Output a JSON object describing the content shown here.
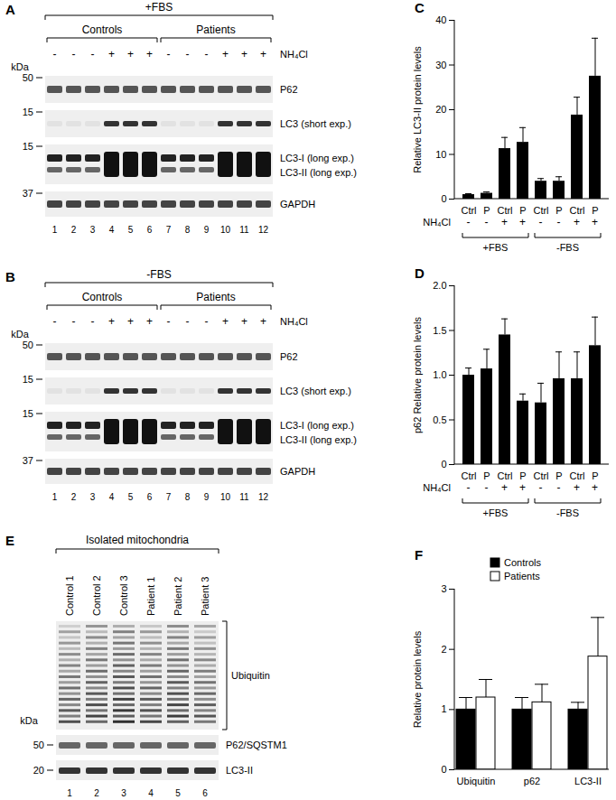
{
  "chart_data": [
    {
      "type": "bar",
      "title": "C",
      "y_label": "Relative LC3-II protein levels",
      "categories": [
        "Ctrl",
        "P",
        "Ctrl",
        "P",
        "Ctrl",
        "P",
        "Ctrl",
        "P"
      ],
      "values": [
        1.0,
        1.3,
        11.3,
        12.7,
        4.0,
        4.0,
        18.8,
        27.5
      ],
      "errors": [
        0.2,
        0.3,
        2.5,
        3.3,
        0.6,
        1.0,
        4.0,
        8.5
      ],
      "color": "#000000",
      "ylim": [
        0,
        40
      ],
      "yticks": [
        0,
        10,
        20,
        30,
        40
      ],
      "treatment": {
        "name": "NH₄Cl",
        "values": [
          "-",
          "-",
          "+",
          "+",
          "-",
          "-",
          "+",
          "+"
        ]
      },
      "groups": [
        {
          "name": "+FBS",
          "size": 4
        },
        {
          "name": "-FBS",
          "size": 4
        }
      ]
    },
    {
      "type": "bar",
      "title": "D",
      "y_label": "p62 Relative protein levels",
      "categories": [
        "Ctrl",
        "P",
        "Ctrl",
        "P",
        "Ctrl",
        "P",
        "Ctrl",
        "P"
      ],
      "values": [
        1.0,
        1.07,
        1.45,
        0.71,
        0.69,
        0.96,
        0.96,
        1.33
      ],
      "errors": [
        0.08,
        0.22,
        0.18,
        0.08,
        0.22,
        0.3,
        0.3,
        0.32
      ],
      "color": "#000000",
      "ylim": [
        0,
        2
      ],
      "yticks": [
        0,
        0.5,
        {
          "value": 1,
          "label": "1.0"
        },
        1.5,
        {
          "value": 2,
          "label": "2.0"
        }
      ],
      "treatment": {
        "name": "NH₄Cl",
        "values": [
          "-",
          "-",
          "+",
          "+",
          "-",
          "-",
          "+",
          "+"
        ]
      },
      "groups": [
        {
          "name": "+FBS",
          "size": 4
        },
        {
          "name": "-FBS",
          "size": 4
        }
      ]
    },
    {
      "type": "bar",
      "title": "F",
      "y_label": "Relative protein levels",
      "categories": [
        "Ubiquitin",
        "p62",
        "LC3-II"
      ],
      "series": [
        {
          "name": "Controls",
          "color": "#000000",
          "values": [
            1.0,
            1.0,
            1.0
          ],
          "errors": [
            0.2,
            0.2,
            0.12
          ]
        },
        {
          "name": "Patients",
          "color": "#ffffff",
          "values": [
            1.2,
            1.12,
            1.88
          ],
          "errors": [
            0.3,
            0.3,
            0.65
          ]
        }
      ],
      "ylim": [
        0,
        3
      ],
      "yticks": [
        0,
        1,
        2,
        3
      ],
      "legend": "top"
    }
  ],
  "blots": [
    {
      "panel": "A",
      "title": "+FBS",
      "groups": [
        {
          "name": "Controls",
          "size": 6
        },
        {
          "name": "Patients",
          "size": 6
        }
      ],
      "treatment": {
        "name": "NH₄Cl",
        "values": [
          "-",
          "-",
          "-",
          "+",
          "+",
          "+",
          "-",
          "-",
          "-",
          "+",
          "+",
          "+"
        ]
      },
      "marker_unit": "kDa",
      "rows": [
        {
          "labels": [
            "P62"
          ],
          "marker": 50
        },
        {
          "labels": [
            "LC3 (short exp.)"
          ],
          "marker": 15
        },
        {
          "labels": [
            "LC3-I (long exp.)",
            "LC3-II (long exp.)"
          ],
          "marker": 15
        },
        {
          "labels": [
            "GAPDH"
          ],
          "marker": 37
        }
      ],
      "lanes": [
        1,
        2,
        3,
        4,
        5,
        6,
        7,
        8,
        9,
        10,
        11,
        12
      ]
    },
    {
      "panel": "B",
      "title": "-FBS",
      "groups": [
        {
          "name": "Controls",
          "size": 6
        },
        {
          "name": "Patients",
          "size": 6
        }
      ],
      "treatment": {
        "name": "NH₄Cl",
        "values": [
          "-",
          "-",
          "-",
          "+",
          "+",
          "+",
          "-",
          "-",
          "-",
          "+",
          "+",
          "+"
        ]
      },
      "marker_unit": "kDa",
      "rows": [
        {
          "labels": [
            "P62"
          ],
          "marker": 50
        },
        {
          "labels": [
            "LC3 (short exp.)"
          ],
          "marker": 15
        },
        {
          "labels": [
            "LC3-I (long exp.)",
            "LC3-II (long exp.)"
          ],
          "marker": 15
        },
        {
          "labels": [
            "GAPDH"
          ],
          "marker": 37
        }
      ],
      "lanes": [
        1,
        2,
        3,
        4,
        5,
        6,
        7,
        8,
        9,
        10,
        11,
        12
      ]
    },
    {
      "panel": "E",
      "title": "Isolated mitochondria",
      "lane_labels": [
        "Control 1",
        "Control 2",
        "Control 3",
        "Patient 1",
        "Patient 2",
        "Patient 3"
      ],
      "marker_unit": "kDa",
      "rows": [
        {
          "labels": [
            "Ubiquitin"
          ]
        },
        {
          "labels": [
            "P62/SQSTM1"
          ],
          "marker": 50
        },
        {
          "labels": [
            "LC3-II"
          ],
          "marker": 20
        }
      ],
      "lanes": [
        1,
        2,
        3,
        4,
        5,
        6
      ]
    }
  ]
}
